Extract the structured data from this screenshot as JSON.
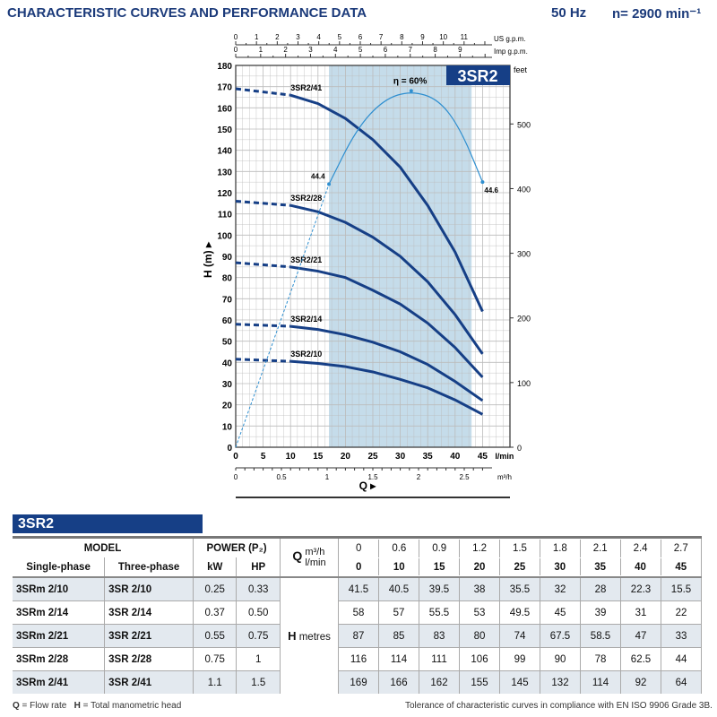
{
  "header": {
    "title": "CHARACTERISTIC CURVES AND PERFORMANCE DATA",
    "freq": "50 Hz",
    "speed": "n= 2900 min⁻¹"
  },
  "chart_data": {
    "type": "line",
    "title": "3SR2",
    "xlabel": "Q",
    "ylabel": "H (m)",
    "y2label": "feet",
    "x_unit": "l/min",
    "xlim": [
      0,
      50
    ],
    "ylim": [
      0,
      180
    ],
    "x_ticks": [
      0,
      5,
      10,
      15,
      20,
      25,
      30,
      35,
      40,
      45
    ],
    "y_ticks": [
      0,
      10,
      20,
      30,
      40,
      50,
      60,
      70,
      80,
      90,
      100,
      110,
      120,
      130,
      140,
      150,
      160,
      170,
      180
    ],
    "y2_ticks": [
      0,
      100,
      200,
      300,
      400,
      500
    ],
    "top_axes": [
      {
        "label": "US g.p.m.",
        "ticks": [
          0,
          1,
          2,
          3,
          4,
          5,
          6,
          7,
          8,
          9,
          10,
          11
        ]
      },
      {
        "label": "Imp g.p.m.",
        "ticks": [
          0,
          1,
          2,
          3,
          4,
          5,
          6,
          7,
          8,
          9
        ]
      }
    ],
    "bottom_axis2": {
      "label": "m³/h",
      "ticks": [
        0,
        0.5,
        1,
        1.5,
        2,
        2.5
      ]
    },
    "recommended_range": [
      17,
      43
    ],
    "grid": true,
    "x": [
      0,
      10,
      15,
      20,
      25,
      30,
      35,
      40,
      45
    ],
    "series": [
      {
        "name": "3SR2/41",
        "values": [
          169,
          166,
          162,
          155,
          145,
          132,
          114,
          92,
          64
        ]
      },
      {
        "name": "3SR2/28",
        "values": [
          116,
          114,
          111,
          106,
          99,
          90,
          78,
          62.5,
          44
        ]
      },
      {
        "name": "3SR2/21",
        "values": [
          87,
          85,
          83,
          80,
          74,
          67.5,
          58.5,
          47,
          33
        ]
      },
      {
        "name": "3SR2/14",
        "values": [
          58,
          57,
          55.5,
          53,
          49.5,
          45,
          39,
          31,
          22
        ]
      },
      {
        "name": "3SR2/10",
        "values": [
          41.5,
          40.5,
          39.5,
          38,
          35.5,
          32,
          28,
          22.3,
          15.5
        ]
      }
    ],
    "efficiency": {
      "label": "η = 60%",
      "points": [
        [
          0,
          0
        ],
        [
          17,
          124
        ],
        [
          22,
          150
        ],
        [
          27,
          164
        ],
        [
          32,
          168
        ],
        [
          37,
          164
        ],
        [
          41,
          150
        ],
        [
          45,
          125
        ]
      ],
      "annotations": [
        "44.4",
        "44.6"
      ]
    }
  },
  "table": {
    "title": "3SR2",
    "model": "MODEL",
    "power": "POWER (P₂)",
    "single": "Single-phase",
    "three": "Three-phase",
    "kw": "kW",
    "hp": "HP",
    "q": "Q",
    "m3h": "m³/h",
    "lmin": "l/min",
    "h": "H",
    "metres": "metres",
    "q_m3h": [
      "0",
      "0.6",
      "0.9",
      "1.2",
      "1.5",
      "1.8",
      "2.1",
      "2.4",
      "2.7"
    ],
    "q_lmin": [
      "0",
      "10",
      "15",
      "20",
      "25",
      "30",
      "35",
      "40",
      "45"
    ],
    "rows": [
      {
        "single": "3SRm 2/10",
        "three": "3SR 2/10",
        "kw": "0.25",
        "hp": "0.33",
        "h": [
          "41.5",
          "40.5",
          "39.5",
          "38",
          "35.5",
          "32",
          "28",
          "22.3",
          "15.5"
        ]
      },
      {
        "single": "3SRm 2/14",
        "three": "3SR 2/14",
        "kw": "0.37",
        "hp": "0.50",
        "h": [
          "58",
          "57",
          "55.5",
          "53",
          "49.5",
          "45",
          "39",
          "31",
          "22"
        ]
      },
      {
        "single": "3SRm 2/21",
        "three": "3SR 2/21",
        "kw": "0.55",
        "hp": "0.75",
        "h": [
          "87",
          "85",
          "83",
          "80",
          "74",
          "67.5",
          "58.5",
          "47",
          "33"
        ]
      },
      {
        "single": "3SRm 2/28",
        "three": "3SR 2/28",
        "kw": "0.75",
        "hp": "1",
        "h": [
          "116",
          "114",
          "111",
          "106",
          "99",
          "90",
          "78",
          "62.5",
          "44"
        ]
      },
      {
        "single": "3SRm 2/41",
        "three": "3SR 2/41",
        "kw": "1.1",
        "hp": "1.5",
        "h": [
          "169",
          "166",
          "162",
          "155",
          "145",
          "132",
          "114",
          "92",
          "64"
        ]
      }
    ]
  },
  "footer": {
    "legend_q": "Q",
    "legend_q_text": " = Flow rate",
    "legend_h": "H",
    "legend_h_text": " = Total manometric head",
    "tolerance": "Tolerance of characteristic curves in compliance with EN ISO 9906 Grade 3B."
  },
  "colors": {
    "curve": "#163f86",
    "efficiency": "#2f8fd0",
    "band": "#c5dcea"
  }
}
